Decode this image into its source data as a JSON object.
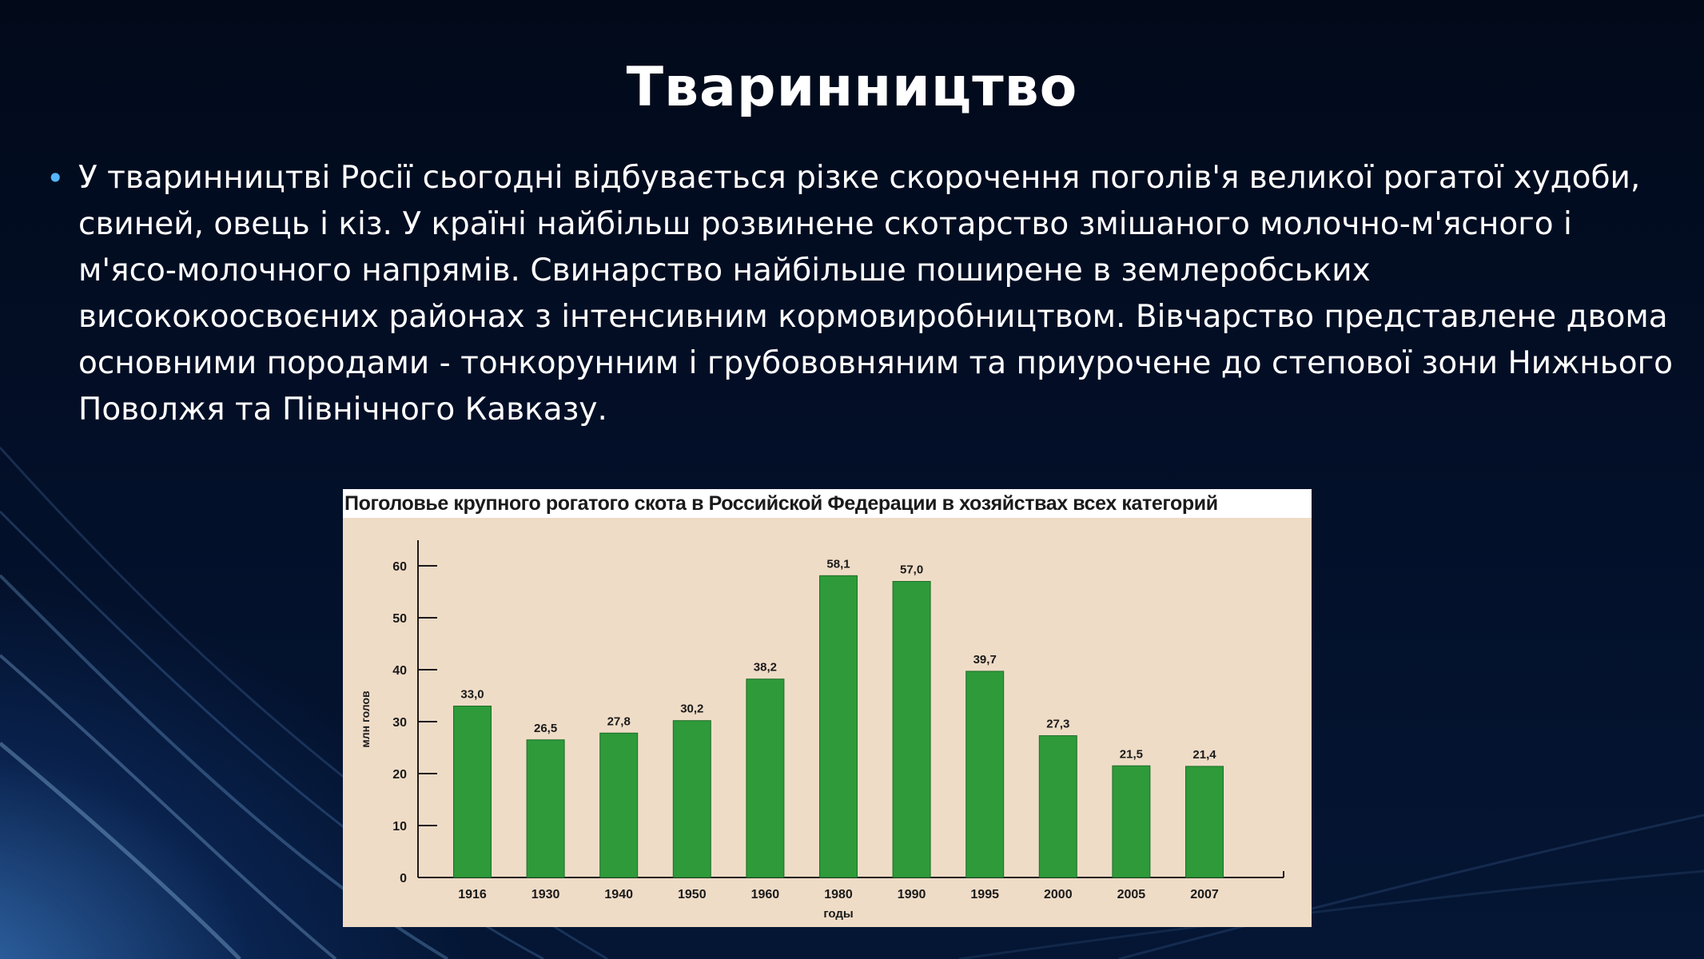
{
  "slide": {
    "title": "Тваринництво",
    "paragraph": " У тваринництві Росії сьогодні відбувається різке скорочення поголів'я великої рогатої худоби, свиней, овець і кіз. У країні найбільш розвинене скотарство змішаного молочно-м'ясного і м'ясо-молочного напрямів. Свинарство найбільше поширене в землеробських висококоосвоєних районах з інтенсивним кормовиробництвом. Вівчарство представлене двома основними породами - тонкорунним і грубововняним та приурочене до степової зони Нижнього Поволжя та Північного Кавказу.",
    "bullet": "•"
  },
  "colors": {
    "bar": "#2e9a3a",
    "chart_background": "#efdcc7",
    "bullet": "#55b6ff"
  },
  "chart_data": {
    "type": "bar",
    "title": "Поголовье крупного рогатого скота в Российской Федерации в хозяйствах всех категорий",
    "xlabel": "годы",
    "ylabel": "млн голов",
    "categories": [
      "1916",
      "1930",
      "1940",
      "1950",
      "1960",
      "1980",
      "1990",
      "1995",
      "2000",
      "2005",
      "2007"
    ],
    "values": [
      33.0,
      26.5,
      27.8,
      30.2,
      38.2,
      58.1,
      57.0,
      39.7,
      27.3,
      21.5,
      21.4
    ],
    "value_labels": [
      "33,0",
      "26,5",
      "27,8",
      "30,2",
      "38,2",
      "58,1",
      "57,0",
      "39,7",
      "27,3",
      "21,5",
      "21,4"
    ],
    "yticks": [
      0,
      10,
      20,
      30,
      40,
      50,
      60
    ],
    "ylim": [
      0,
      64
    ],
    "grid": false,
    "legend": "none"
  }
}
